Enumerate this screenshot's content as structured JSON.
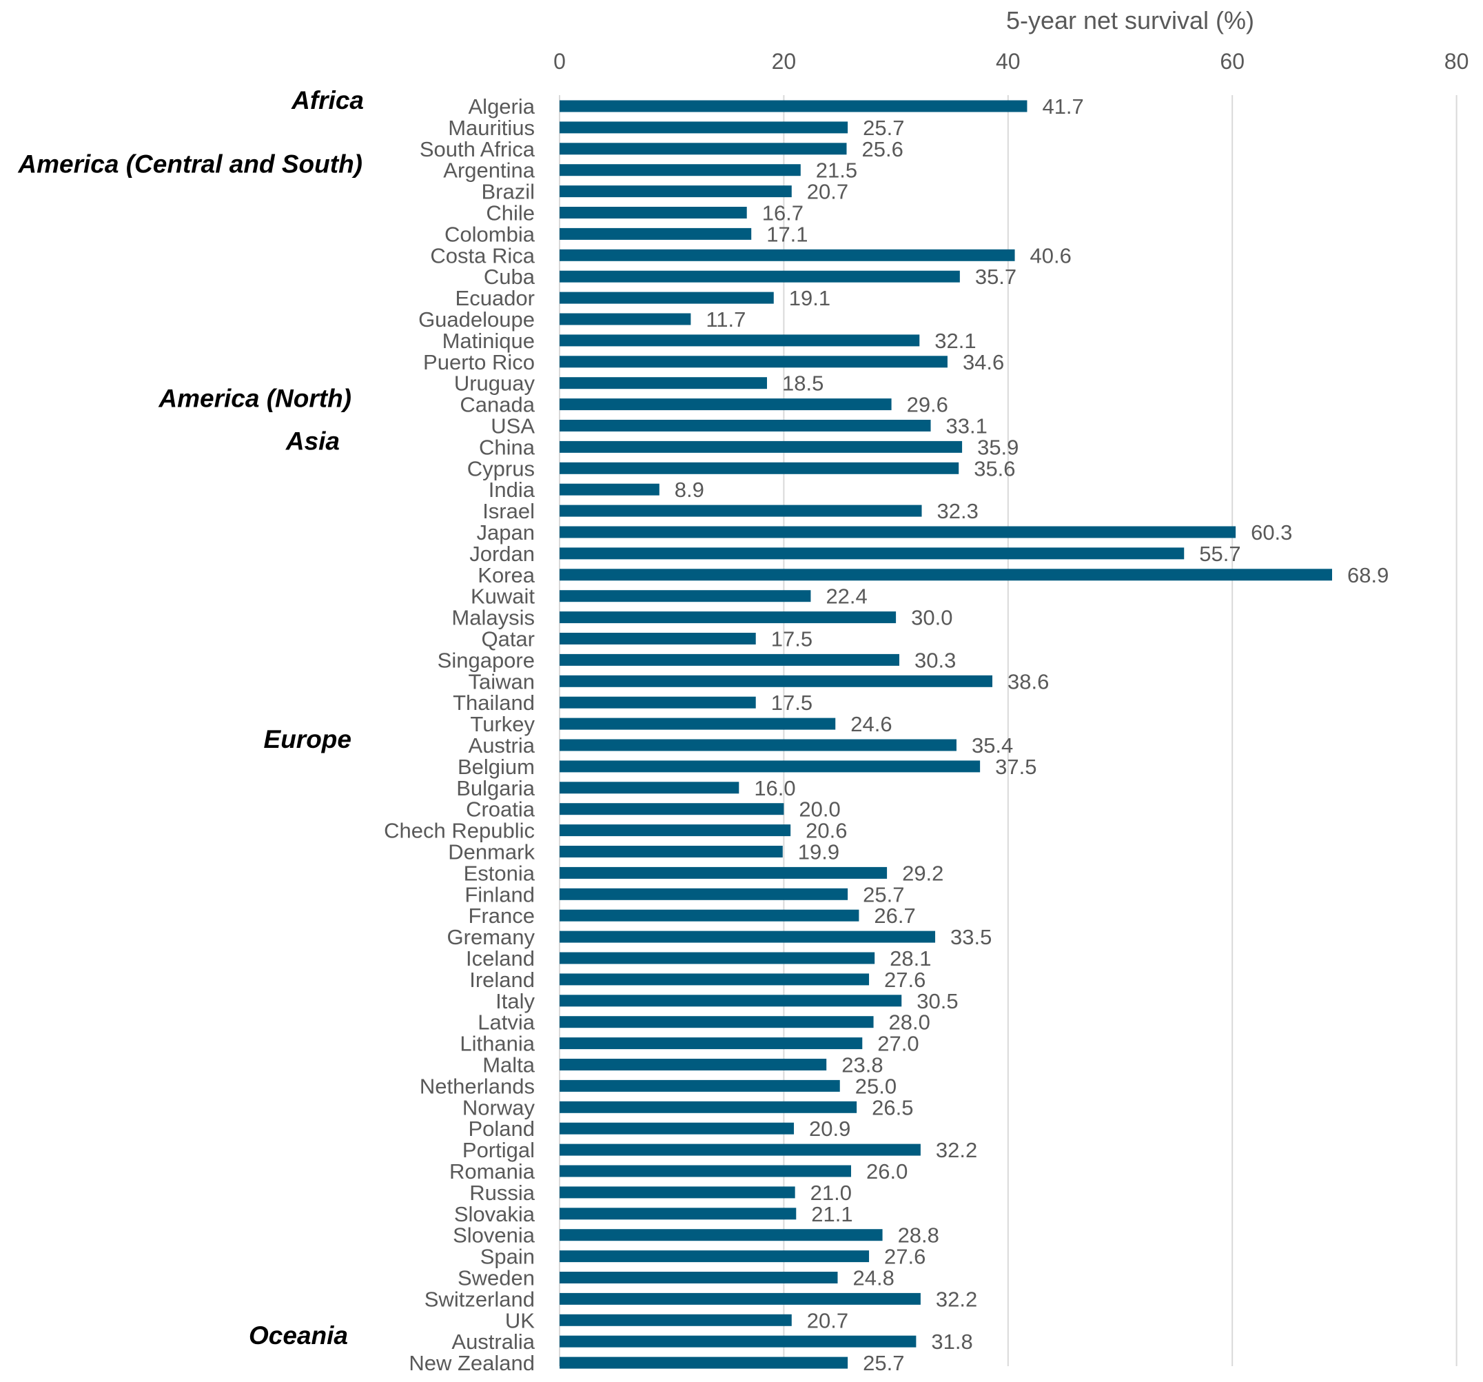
{
  "chart_data": {
    "type": "bar",
    "orientation": "horizontal",
    "xlabel": "5-year net survival (%)",
    "xlim": [
      0,
      80
    ],
    "xticks": [
      0,
      20,
      40,
      60,
      80
    ],
    "grid": true,
    "bar_color": "#005B7F",
    "gridline_color": "#D9D9D9",
    "text_color": "#595959",
    "regions": [
      {
        "label": "Africa",
        "first_category": "Algeria"
      },
      {
        "label": "America (Central and South)",
        "first_category": "Argentina"
      },
      {
        "label": "America (North)",
        "first_category": "Canada"
      },
      {
        "label": "Asia",
        "first_category": "China"
      },
      {
        "label": "Europe",
        "first_category": "Austria"
      },
      {
        "label": "Oceania",
        "first_category": "Australia"
      }
    ],
    "categories": [
      "Algeria",
      "Mauritius",
      "South Africa",
      "Argentina",
      "Brazil",
      "Chile",
      "Colombia",
      "Costa Rica",
      "Cuba",
      "Ecuador",
      "Guadeloupe",
      "Matinique",
      "Puerto Rico",
      "Uruguay",
      "Canada",
      "USA",
      "China",
      "Cyprus",
      "India",
      "Israel",
      "Japan",
      "Jordan",
      "Korea",
      "Kuwait",
      "Malaysis",
      "Qatar",
      "Singapore",
      "Taiwan",
      "Thailand",
      "Turkey",
      "Austria",
      "Belgium",
      "Bulgaria",
      "Croatia",
      "Chech Republic",
      "Denmark",
      "Estonia",
      "Finland",
      "France",
      "Gremany",
      "Iceland",
      "Ireland",
      "Italy",
      "Latvia",
      "Lithania",
      "Malta",
      "Netherlands",
      "Norway",
      "Poland",
      "Portigal",
      "Romania",
      "Russia",
      "Slovakia",
      "Slovenia",
      "Spain",
      "Sweden",
      "Switzerland",
      "UK",
      "Australia",
      "New Zealand"
    ],
    "values": [
      41.7,
      25.7,
      25.6,
      21.5,
      20.7,
      16.7,
      17.1,
      40.6,
      35.7,
      19.1,
      11.7,
      32.1,
      34.6,
      18.5,
      29.6,
      33.1,
      35.9,
      35.6,
      8.9,
      32.3,
      60.3,
      55.7,
      68.9,
      22.4,
      30.0,
      17.5,
      30.3,
      38.6,
      17.5,
      24.6,
      35.4,
      37.5,
      16.0,
      20.0,
      20.6,
      19.9,
      29.2,
      25.7,
      26.7,
      33.5,
      28.1,
      27.6,
      30.5,
      28.0,
      27.0,
      23.8,
      25.0,
      26.5,
      20.9,
      32.2,
      26.0,
      21.0,
      21.1,
      28.8,
      27.6,
      24.8,
      32.2,
      20.7,
      31.8,
      25.7
    ]
  }
}
